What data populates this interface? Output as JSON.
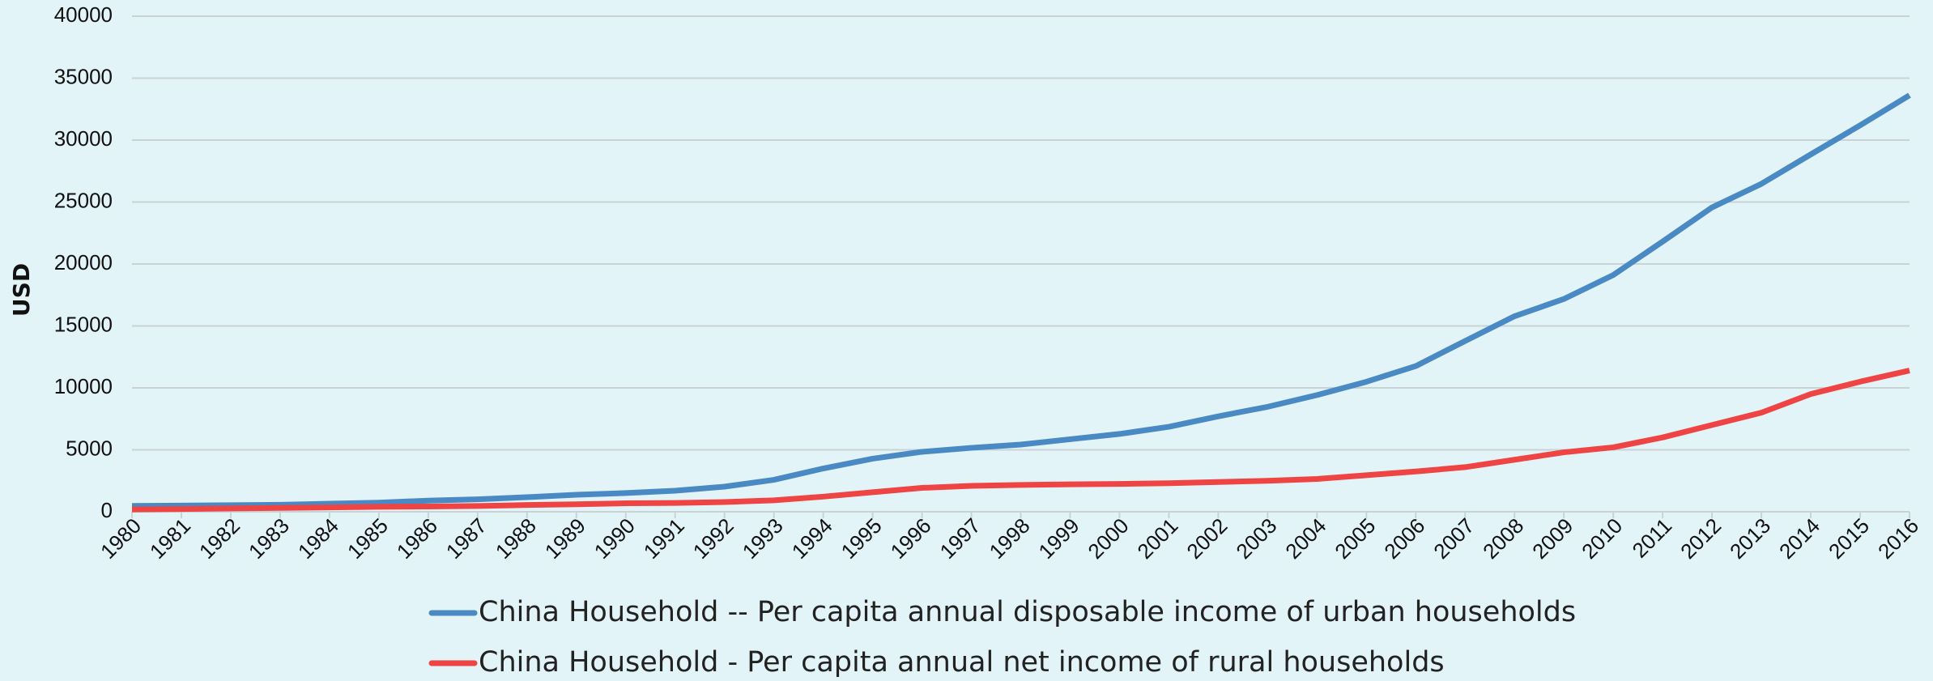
{
  "chart_data": {
    "type": "line",
    "y_label": "USD",
    "x": [
      "1980",
      "1981",
      "1982",
      "1983",
      "1984",
      "1985",
      "1986",
      "1987",
      "1988",
      "1989",
      "1990",
      "1991",
      "1992",
      "1993",
      "1994",
      "1995",
      "1996",
      "1997",
      "1998",
      "1999",
      "2000",
      "2001",
      "2002",
      "2003",
      "2004",
      "2005",
      "2006",
      "2007",
      "2008",
      "2009",
      "2010",
      "2011",
      "2012",
      "2013",
      "2014",
      "2015",
      "2016"
    ],
    "series": [
      {
        "name": "China Household -- Per capita annual disposable income of urban households",
        "color": "#4a8ac4",
        "values": [
          477,
          500,
          535,
          564,
          651,
          739,
          900,
          1002,
          1180,
          1374,
          1510,
          1700,
          2027,
          2577,
          3496,
          4283,
          4839,
          5160,
          5425,
          5854,
          6280,
          6860,
          7703,
          8472,
          9422,
          10493,
          11759,
          13786,
          15781,
          17175,
          19109,
          21810,
          24565,
          26467,
          28844,
          31195,
          33616
        ]
      },
      {
        "name": "China Household - Per capita annual net income of rural households",
        "color": "#ef4444",
        "values": [
          191,
          223,
          270,
          310,
          355,
          398,
          424,
          463,
          545,
          602,
          686,
          709,
          784,
          922,
          1221,
          1578,
          1926,
          2090,
          2162,
          2210,
          2250,
          2300,
          2400,
          2500,
          2650,
          2950,
          3250,
          3600,
          4200,
          4800,
          5200,
          6000,
          7000,
          8000,
          9500,
          10500,
          11400
        ]
      }
    ],
    "ylim": [
      0,
      40000
    ],
    "yticks": [
      0,
      5000,
      10000,
      15000,
      20000,
      25000,
      30000,
      35000,
      40000
    ],
    "grid": true
  }
}
